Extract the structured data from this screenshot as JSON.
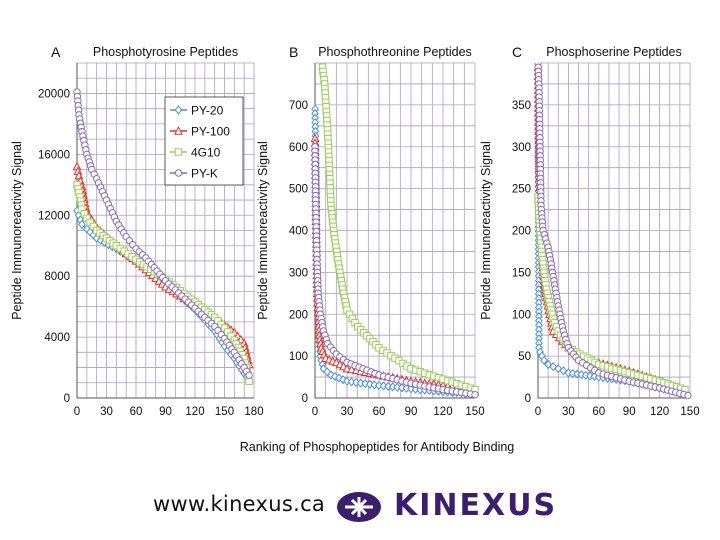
{
  "shared_xlabel": "Ranking of Phosphopeptides for Antibody Binding",
  "footer": {
    "website": "www.kinexus.ca",
    "brand": "KINEXUS",
    "brand_color": "#3c1e6e",
    "logo_icon": "kinexus-logo-icon"
  },
  "colors": {
    "PY-20": "#4a8fd6",
    "PY-100": "#e0302a",
    "4G10": "#9bcc5a",
    "PY-K": "#8a6bb8",
    "grid": "#a99fc9"
  },
  "chart_data": [
    {
      "type": "line",
      "panel_letter": "A",
      "title": "Phosphotyrosine Peptides",
      "xlabel": "",
      "ylabel": "Peptide Immunoreactivity Signal",
      "xlim": [
        0,
        180
      ],
      "ylim": [
        0,
        22000
      ],
      "xticks": [
        0,
        30,
        60,
        90,
        120,
        150,
        180
      ],
      "yticks": [
        0,
        4000,
        8000,
        12000,
        16000,
        20000
      ],
      "x_step": 10,
      "y_step": 1000,
      "grid": true,
      "legend": "top-right",
      "series": [
        {
          "name": "PY-20",
          "marker": "diamond",
          "x": [
            0,
            5,
            10,
            20,
            40,
            60,
            90,
            120,
            140,
            150,
            160,
            170,
            175
          ],
          "y": [
            12300,
            11400,
            11100,
            10500,
            9800,
            9000,
            7600,
            5800,
            4400,
            3400,
            2600,
            1600,
            1200
          ]
        },
        {
          "name": "PY-100",
          "marker": "triangle",
          "x": [
            0,
            2,
            5,
            10,
            20,
            40,
            60,
            90,
            120,
            140,
            150,
            160,
            170,
            175
          ],
          "y": [
            15200,
            14600,
            13900,
            12200,
            11200,
            10000,
            9000,
            7300,
            6100,
            5200,
            4800,
            4300,
            3600,
            2200
          ]
        },
        {
          "name": "4G10",
          "marker": "square",
          "x": [
            0,
            3,
            5,
            10,
            20,
            40,
            60,
            90,
            120,
            140,
            150,
            160,
            170,
            175
          ],
          "y": [
            14000,
            13200,
            12400,
            11800,
            11000,
            10000,
            9100,
            7800,
            6300,
            5300,
            4600,
            3800,
            2600,
            1100
          ]
        },
        {
          "name": "PY-K",
          "marker": "circle",
          "x": [
            0,
            2,
            5,
            10,
            15,
            20,
            30,
            40,
            50,
            60,
            70,
            90,
            120,
            140,
            150,
            160,
            170,
            175
          ],
          "y": [
            20100,
            18600,
            17500,
            16000,
            15000,
            14400,
            13000,
            11600,
            10600,
            9800,
            9200,
            7700,
            5900,
            4700,
            3900,
            3000,
            2000,
            1500
          ]
        }
      ]
    },
    {
      "type": "line",
      "panel_letter": "B",
      "title": "Phosphothreonine Peptides",
      "xlabel": "",
      "ylabel": "Peptide Immunoreactivity Signal",
      "xlim": [
        0,
        150
      ],
      "ylim": [
        0,
        800
      ],
      "xticks": [
        0,
        30,
        60,
        90,
        120,
        150
      ],
      "yticks": [
        0,
        100,
        200,
        300,
        400,
        500,
        600,
        700
      ],
      "x_step": 10,
      "y_step": 50,
      "grid": true,
      "legend": "none",
      "series": [
        {
          "name": "PY-20",
          "marker": "diamond",
          "x": [
            0,
            1,
            2,
            3,
            5,
            8,
            15,
            30,
            60,
            90,
            120,
            150
          ],
          "y": [
            690,
            540,
            330,
            180,
            100,
            70,
            55,
            40,
            30,
            22,
            15,
            10
          ]
        },
        {
          "name": "PY-100",
          "marker": "triangle",
          "x": [
            0,
            1,
            2,
            4,
            6,
            10,
            20,
            30,
            60,
            90,
            120,
            150
          ],
          "y": [
            620,
            400,
            250,
            150,
            120,
            95,
            85,
            70,
            55,
            40,
            30,
            15
          ]
        },
        {
          "name": "4G10",
          "marker": "square",
          "x": [
            7,
            9,
            12,
            15,
            18,
            22,
            26,
            30,
            40,
            60,
            90,
            120,
            150
          ],
          "y": [
            790,
            750,
            630,
            460,
            390,
            320,
            260,
            210,
            170,
            120,
            70,
            45,
            20
          ]
        },
        {
          "name": "PY-K",
          "marker": "circle",
          "x": [
            0,
            1,
            2,
            3,
            5,
            8,
            12,
            20,
            30,
            60,
            90,
            120,
            150
          ],
          "y": [
            600,
            420,
            320,
            250,
            200,
            160,
            130,
            105,
            85,
            55,
            35,
            20,
            8
          ]
        }
      ]
    },
    {
      "type": "line",
      "panel_letter": "C",
      "title": "Phosphoserine Peptides",
      "xlabel": "",
      "ylabel": "Peptide Immunoreactivity Signal",
      "xlim": [
        0,
        150
      ],
      "ylim": [
        0,
        400
      ],
      "xticks": [
        0,
        30,
        60,
        90,
        120,
        150
      ],
      "yticks": [
        0,
        50,
        100,
        150,
        200,
        250,
        300,
        350
      ],
      "x_step": 10,
      "y_step": 25,
      "grid": true,
      "legend": "none",
      "series": [
        {
          "name": "PY-20",
          "marker": "diamond",
          "x": [
            0,
            1,
            2,
            4,
            6,
            10,
            20,
            30,
            60,
            90,
            120,
            145
          ],
          "y": [
            370,
            60,
            55,
            50,
            45,
            40,
            35,
            30,
            25,
            20,
            12,
            5
          ]
        },
        {
          "name": "PY-100",
          "marker": "triangle",
          "x": [
            0,
            1,
            2,
            3,
            5,
            8,
            15,
            30,
            45,
            60,
            90,
            120,
            145
          ],
          "y": [
            395,
            280,
            240,
            200,
            150,
            120,
            80,
            60,
            45,
            42,
            32,
            20,
            8
          ]
        },
        {
          "name": "4G10",
          "marker": "square",
          "x": [
            0,
            1,
            2,
            4,
            7,
            10,
            15,
            20,
            30,
            60,
            90,
            120,
            145
          ],
          "y": [
            240,
            215,
            200,
            170,
            140,
            120,
            95,
            80,
            60,
            40,
            30,
            20,
            10
          ]
        },
        {
          "name": "PY-K",
          "marker": "circle",
          "x": [
            0,
            1,
            2,
            3,
            5,
            10,
            13,
            15,
            20,
            25,
            30,
            40,
            60,
            90,
            120,
            148
          ],
          "y": [
            400,
            370,
            300,
            230,
            200,
            180,
            160,
            145,
            110,
            80,
            60,
            45,
            30,
            20,
            12,
            3
          ]
        }
      ]
    }
  ]
}
